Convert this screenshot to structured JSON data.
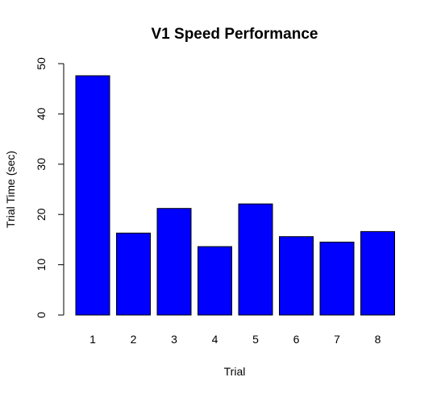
{
  "chart_data": {
    "type": "bar",
    "title": "V1 Speed Performance",
    "xlabel": "Trial",
    "ylabel": "Trial Time (sec)",
    "categories": [
      "1",
      "2",
      "3",
      "4",
      "5",
      "6",
      "7",
      "8"
    ],
    "values": [
      47.6,
      16.3,
      21.2,
      13.6,
      22.1,
      15.6,
      14.5,
      16.6
    ],
    "ylim": [
      0,
      50
    ],
    "yticks": [
      "0",
      "10",
      "20",
      "30",
      "40",
      "50"
    ],
    "bar_color": "#0000ff",
    "bar_border_color": "#000000",
    "grid": false,
    "legend": "none"
  }
}
